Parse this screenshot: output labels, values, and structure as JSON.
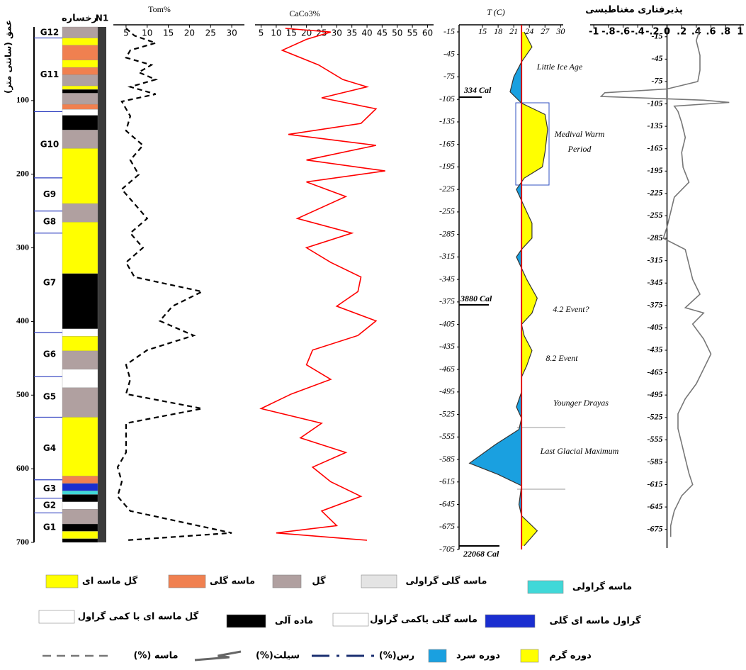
{
  "chart_data": [
    {
      "type": "lithology",
      "title": "رخساره",
      "column_label": "N1",
      "y_label": "عمق (سانتی متر)",
      "ylim": [
        0,
        700
      ],
      "yticks": [
        100,
        200,
        300,
        400,
        500,
        600,
        700
      ],
      "units": [
        {
          "name": "G12",
          "top": 0,
          "bottom": 15
        },
        {
          "name": "G11",
          "top": 15,
          "bottom": 115
        },
        {
          "name": "G10",
          "top": 115,
          "bottom": 205
        },
        {
          "name": "G9",
          "top": 205,
          "bottom": 250
        },
        {
          "name": "G8",
          "top": 250,
          "bottom": 280
        },
        {
          "name": "G7",
          "top": 280,
          "bottom": 415
        },
        {
          "name": "G6",
          "top": 415,
          "bottom": 475
        },
        {
          "name": "G5",
          "top": 475,
          "bottom": 530
        },
        {
          "name": "G4",
          "top": 530,
          "bottom": 615
        },
        {
          "name": "G3",
          "top": 615,
          "bottom": 640
        },
        {
          "name": "G2",
          "top": 640,
          "bottom": 660
        },
        {
          "name": "G1",
          "top": 660,
          "bottom": 700
        }
      ],
      "layers": [
        {
          "top": 0,
          "bottom": 15,
          "facies": 2
        },
        {
          "top": 15,
          "bottom": 25,
          "facies": 0
        },
        {
          "top": 25,
          "bottom": 45,
          "facies": 1
        },
        {
          "top": 45,
          "bottom": 55,
          "facies": 0
        },
        {
          "top": 55,
          "bottom": 65,
          "facies": 1
        },
        {
          "top": 65,
          "bottom": 80,
          "facies": 2
        },
        {
          "top": 80,
          "bottom": 85,
          "facies": 0
        },
        {
          "top": 85,
          "bottom": 90,
          "facies": 6
        },
        {
          "top": 90,
          "bottom": 105,
          "facies": 2
        },
        {
          "top": 105,
          "bottom": 112,
          "facies": 1
        },
        {
          "top": 112,
          "bottom": 120,
          "facies": 5
        },
        {
          "top": 120,
          "bottom": 140,
          "facies": 6
        },
        {
          "top": 140,
          "bottom": 165,
          "facies": 2
        },
        {
          "top": 165,
          "bottom": 240,
          "facies": 0
        },
        {
          "top": 240,
          "bottom": 265,
          "facies": 2
        },
        {
          "top": 265,
          "bottom": 335,
          "facies": 0
        },
        {
          "top": 335,
          "bottom": 410,
          "facies": 6
        },
        {
          "top": 410,
          "bottom": 420,
          "facies": 7
        },
        {
          "top": 420,
          "bottom": 440,
          "facies": 0
        },
        {
          "top": 440,
          "bottom": 465,
          "facies": 2
        },
        {
          "top": 465,
          "bottom": 490,
          "facies": 5
        },
        {
          "top": 490,
          "bottom": 530,
          "facies": 2
        },
        {
          "top": 530,
          "bottom": 610,
          "facies": 0
        },
        {
          "top": 610,
          "bottom": 620,
          "facies": 1
        },
        {
          "top": 620,
          "bottom": 630,
          "facies": 8
        },
        {
          "top": 630,
          "bottom": 635,
          "facies": 4
        },
        {
          "top": 635,
          "bottom": 645,
          "facies": 6
        },
        {
          "top": 645,
          "bottom": 655,
          "facies": 7
        },
        {
          "top": 655,
          "bottom": 675,
          "facies": 2
        },
        {
          "top": 675,
          "bottom": 685,
          "facies": 6
        },
        {
          "top": 685,
          "bottom": 695,
          "facies": 0
        },
        {
          "top": 695,
          "bottom": 700,
          "facies": 6
        }
      ]
    },
    {
      "type": "line",
      "title": "Tom%",
      "color": "#000000",
      "dashed": true,
      "xlim": [
        2,
        33
      ],
      "xticks": [
        5,
        10,
        15,
        20,
        25,
        30
      ],
      "ylim": [
        0,
        700
      ],
      "depth": [
        0,
        10,
        20,
        30,
        40,
        50,
        60,
        70,
        80,
        90,
        100,
        120,
        140,
        160,
        180,
        200,
        220,
        240,
        260,
        280,
        300,
        320,
        340,
        360,
        380,
        400,
        420,
        440,
        460,
        480,
        500,
        520,
        540,
        560,
        580,
        600,
        620,
        640,
        660,
        690,
        700
      ],
      "values": [
        5,
        7,
        12,
        6,
        5,
        11,
        8,
        12,
        6,
        12,
        4,
        6,
        5,
        9,
        6,
        8,
        4,
        7,
        10,
        6,
        9,
        5,
        7,
        23,
        16,
        13,
        21,
        10,
        5,
        6,
        5,
        23,
        5,
        5,
        5,
        3,
        4,
        3,
        6,
        30,
        5
      ]
    },
    {
      "type": "line",
      "title": "CaCo3%",
      "color": "#ff0000",
      "dashed": false,
      "xlim": [
        3,
        62
      ],
      "xticks": [
        5,
        10,
        15,
        20,
        25,
        30,
        35,
        40,
        45,
        50,
        55,
        60
      ],
      "ylim": [
        0,
        700
      ],
      "depth": [
        0,
        5,
        15,
        30,
        50,
        70,
        80,
        95,
        110,
        130,
        145,
        160,
        180,
        195,
        210,
        230,
        260,
        280,
        300,
        320,
        340,
        360,
        380,
        400,
        420,
        440,
        460,
        480,
        500,
        520,
        540,
        560,
        580,
        600,
        620,
        640,
        660,
        680,
        690,
        700
      ],
      "values": [
        13,
        28,
        20,
        12,
        24,
        32,
        40,
        25,
        43,
        38,
        14,
        43,
        20,
        46,
        20,
        33,
        17,
        35,
        20,
        28,
        38,
        37,
        30,
        43,
        37,
        22,
        20,
        28,
        15,
        5,
        25,
        18,
        33,
        22,
        28,
        38,
        25,
        30,
        10,
        40
      ]
    },
    {
      "type": "anomaly",
      "title": "T (C)",
      "reference_line": 22.5,
      "reference_color": "#e00000",
      "warm_color": "#ffff00",
      "cold_color": "#1aa0e0",
      "xlim": [
        10.5,
        30.5
      ],
      "xticks": [
        15,
        18,
        21,
        24,
        27,
        30
      ],
      "ylim": [
        -15,
        -705
      ],
      "yticks": [
        -15,
        -45,
        -75,
        -105,
        -135,
        -165,
        -195,
        -225,
        -255,
        -285,
        -315,
        -345,
        -375,
        -405,
        -435,
        -465,
        -495,
        -525,
        -555,
        -585,
        -615,
        -645,
        -675,
        -705
      ],
      "depth": [
        -15,
        -35,
        -55,
        -75,
        -95,
        -110,
        -125,
        -145,
        -175,
        -195,
        -210,
        -225,
        -240,
        -255,
        -270,
        -290,
        -305,
        -315,
        -330,
        -345,
        -370,
        -390,
        -405,
        -420,
        -440,
        -460,
        -475,
        -495,
        -515,
        -530,
        -545,
        -565,
        -590,
        -605,
        -620,
        -645,
        -660,
        -680,
        -700
      ],
      "values": [
        23.0,
        24.5,
        22.5,
        21.0,
        20.3,
        22.5,
        27.0,
        27.5,
        27.0,
        26.5,
        23.0,
        21.5,
        22.5,
        23.5,
        24.5,
        24.5,
        22.5,
        21.5,
        22.5,
        23.5,
        25.5,
        24.5,
        22.5,
        23.0,
        24.5,
        23.5,
        22.5,
        22.5,
        21.5,
        22.5,
        22.0,
        17.5,
        12.5,
        18,
        22.5,
        22.0,
        22.5,
        25.5,
        23.0
      ],
      "annotations": [
        "Little Ice Age",
        "Medival Warm",
        "Period",
        "4.2 Event?",
        "8.2 Event",
        "Younger Drayas",
        "Last Glacial Maximum",
        "334 Cal",
        "3880 Cal",
        "22068 Cal"
      ]
    },
    {
      "type": "line",
      "title": "پذیرفتاری مغناطیسی",
      "color": "#777777",
      "dashed": false,
      "xlim": [
        -1.05,
        1.05
      ],
      "xticks": [
        -1,
        {
          "value": -0.8,
          "label": "-.8"
        },
        {
          "value": -0.6,
          "label": "-.6"
        },
        {
          "value": -0.4,
          "label": "-.4"
        },
        {
          "value": -0.2,
          "label": "-.2"
        },
        0,
        {
          "value": 0.2,
          "label": ".2"
        },
        {
          "value": 0.4,
          "label": ".4"
        },
        {
          "value": 0.6,
          "label": ".6"
        },
        {
          "value": 0.8,
          "label": ".8"
        },
        1
      ],
      "ylim": [
        0,
        -700
      ],
      "yticks": [
        -15,
        -45,
        -75,
        -105,
        -135,
        -165,
        -195,
        -225,
        -255,
        -285,
        -315,
        -345,
        -375,
        -405,
        -435,
        -465,
        -495,
        -525,
        -555,
        -585,
        -615,
        -645,
        -675
      ],
      "depth": [
        -5,
        -20,
        -40,
        -60,
        -75,
        -85,
        -90,
        -95,
        -100,
        -103,
        -108,
        -115,
        -130,
        -150,
        -170,
        -190,
        -210,
        -230,
        -250,
        -270,
        -285,
        -300,
        -320,
        -340,
        -360,
        -378,
        -385,
        -400,
        -420,
        -440,
        -460,
        -480,
        -500,
        -520,
        -540,
        -560,
        -580,
        -600,
        -615,
        -630,
        -650,
        -670,
        -685
      ],
      "values": [
        0.45,
        0.4,
        0.45,
        0.45,
        0.42,
        0.0,
        -0.85,
        -0.9,
        0.5,
        0.85,
        0.1,
        0.15,
        0.2,
        0.25,
        0.2,
        0.22,
        0.3,
        0.1,
        0.05,
        0.0,
        -0.05,
        0.25,
        0.3,
        0.35,
        0.45,
        0.25,
        0.5,
        0.35,
        0.5,
        0.6,
        0.5,
        0.4,
        0.25,
        0.15,
        0.15,
        0.2,
        0.25,
        0.3,
        0.35,
        0.2,
        0.1,
        0.05,
        0.05
      ]
    }
  ],
  "legend": [
    {
      "label": "گل ماسه ای",
      "color": "#ffff00",
      "kind": "swatch"
    },
    {
      "label": "ماسه گلی",
      "color": "#f08050",
      "kind": "swatch"
    },
    {
      "label": "گل",
      "color": "#b0a0a0",
      "kind": "swatch"
    },
    {
      "label": "ماسه گلی گراولی",
      "color": "#e4e4e4",
      "kind": "swatch"
    },
    {
      "label": "ماسه گراولی",
      "color": "#40d8d8",
      "kind": "swatch"
    },
    {
      "label": "گل ماسه ای با کمی گراول",
      "color": "#ffffff",
      "kind": "swatch"
    },
    {
      "label": "ماده آلی",
      "color": "#000000",
      "kind": "swatch"
    },
    {
      "label": "ماسه گلی باکمی گراول",
      "color": "#ffffff",
      "kind": "swatch"
    },
    {
      "label": "گراول ماسه ای گلی",
      "color": "#1a2ed0",
      "kind": "swatch"
    },
    {
      "label": "ماسه (%)",
      "color": "#777777",
      "kind": "dashed"
    },
    {
      "label": "سیلت(%)",
      "color": "#666666",
      "kind": "zigzag"
    },
    {
      "label": "رس(%)",
      "color": "#1a2e70",
      "kind": "dashdot"
    },
    {
      "label": "دوره سرد",
      "color": "#1aa0e0",
      "kind": "swatch"
    },
    {
      "label": "دوره گرم",
      "color": "#ffff00",
      "kind": "swatch"
    }
  ]
}
